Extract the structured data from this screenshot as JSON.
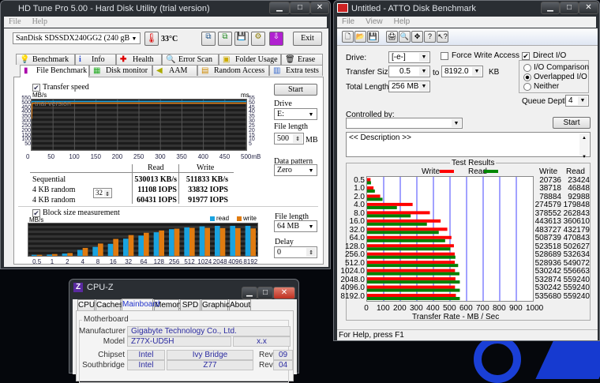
{
  "hdtune": {
    "title": "HD Tune Pro 5.00 - Hard Disk Utility (trial version)",
    "menu": [
      "File",
      "Help"
    ],
    "drive_select": "SanDisk SDSSDX240GG2     (240 gB)",
    "temperature": "33°C",
    "exit_label": "Exit",
    "tabs_row1": [
      "Benchmark",
      "Info",
      "Health",
      "Error Scan",
      "Folder Usage",
      "Erase"
    ],
    "tabs_row2": [
      "File Benchmark",
      "Disk monitor",
      "AAM",
      "Random Access",
      "Extra tests"
    ],
    "active_tab": "File Benchmark",
    "transfer_speed_label": "Transfer speed",
    "transfer_speed_checked": true,
    "watermark": "trial version",
    "start_label": "Start",
    "drive_label": "Drive",
    "drive_value": "E:",
    "file_length_label": "File length",
    "file_length_value": "500",
    "file_length_unit": "MB",
    "data_pattern_label": "Data pattern",
    "data_pattern_value": "Zero",
    "results": {
      "headers": [
        "Read",
        "Write"
      ],
      "rows": [
        {
          "label": "Sequential",
          "read": "530013 KB/s",
          "write": "511833 KB/s"
        },
        {
          "label": "4 KB random",
          "read": "11108 IOPS",
          "write": "33832 IOPS"
        },
        {
          "label": "4 KB random",
          "read": "60431 IOPS",
          "write": "91977 IOPS"
        }
      ],
      "queue_depth": "32"
    },
    "block_size_label": "Block size measurement",
    "block_size_checked": true,
    "block_file_length_label": "File length",
    "block_file_length_value": "64 MB",
    "delay_label": "Delay",
    "delay_value": "0"
  },
  "atto": {
    "title": "Untitled - ATTO Disk Benchmark",
    "menu": [
      "File",
      "View",
      "Help"
    ],
    "drive_label": "Drive:",
    "drive_value": "[-e-]",
    "transfer_size_label": "Transfer Size:",
    "transfer_from": "0.5",
    "to_label": "to",
    "transfer_to": "8192.0",
    "kb_label": "KB",
    "total_length_label": "Total Length:",
    "total_length_value": "256 MB",
    "force_write_label": "Force Write Access",
    "force_write_checked": false,
    "direct_io_label": "Direct I/O",
    "direct_io_checked": true,
    "io_options": [
      "I/O Comparison",
      "Overlapped I/O",
      "Neither"
    ],
    "io_selected": "Overlapped I/O",
    "queue_depth_label": "Queue Depth:",
    "queue_depth_value": "4",
    "controlled_by_label": "Controlled by:",
    "controlled_by_value": "",
    "start_label": "Start",
    "description": "<< Description >>",
    "test_results_label": "Test Results",
    "status": "For Help, press F1",
    "colors": {
      "write": "#ff0000",
      "read": "#008000",
      "grid": "#4444ff"
    }
  },
  "cpuz": {
    "title": "CPU-Z",
    "tabs": [
      "CPU",
      "Caches",
      "Mainboard",
      "Memory",
      "SPD",
      "Graphics",
      "About"
    ],
    "active_tab": "Mainboard",
    "group": "Motherboard",
    "manufacturer_label": "Manufacturer",
    "manufacturer": "Gigabyte Technology Co., Ltd.",
    "model_label": "Model",
    "model": "Z77X-UD5H",
    "model_rev": "x.x",
    "chipset_label": "Chipset",
    "chipset_vendor": "Intel",
    "chipset_name": "Ivy Bridge",
    "chipset_rev_label": "Rev.",
    "chipset_rev": "09",
    "southbridge_label": "Southbridge",
    "sb_vendor": "Intel",
    "sb_name": "Z77",
    "sb_rev_label": "Rev.",
    "sb_rev": "04"
  },
  "chart_data": [
    {
      "type": "line",
      "name": "hdtune-transfer-speed",
      "ylabel": "MB/s",
      "y2label": "ms",
      "xlabel": "mB",
      "x_ticks": [
        "0",
        "50",
        "100",
        "150",
        "200",
        "250",
        "300",
        "350",
        "400",
        "450",
        "500mB"
      ],
      "y_ticks": [
        "50",
        "100",
        "150",
        "200",
        "250",
        "300",
        "350",
        "400",
        "450",
        "500",
        "550"
      ],
      "y2_ticks": [
        "5",
        "10",
        "15",
        "20",
        "25",
        "30",
        "35",
        "40",
        "45",
        "50",
        "55"
      ],
      "xlim": [
        0,
        500
      ],
      "ylim": [
        0,
        550
      ],
      "series": [
        {
          "values_x": [
            0,
            2,
            500
          ],
          "values_y": [
            520,
            530,
            530
          ],
          "color": "#1aa3e0"
        },
        {
          "values_x": [
            0,
            1,
            2,
            500
          ],
          "values_y": [
            340,
            500,
            510,
            510
          ],
          "color": "#e07b10"
        }
      ]
    },
    {
      "type": "bar",
      "name": "hdtune-block-size",
      "ylabel": "MB/s",
      "ylim": [
        0,
        600
      ],
      "categories": [
        "0.5",
        "1",
        "2",
        "4",
        "8",
        "16",
        "32",
        "64",
        "128",
        "256",
        "512",
        "1024",
        "2048",
        "4096",
        "8192"
      ],
      "series": [
        {
          "name": "read",
          "color": "#1aa3e0",
          "values": [
            20,
            25,
            45,
            115,
            175,
            235,
            335,
            395,
            460,
            520,
            555,
            575,
            585,
            585,
            585
          ]
        },
        {
          "name": "write",
          "color": "#e07b10",
          "values": [
            20,
            35,
            55,
            155,
            240,
            330,
            405,
            450,
            495,
            530,
            545,
            545,
            540,
            540,
            535
          ]
        }
      ]
    },
    {
      "type": "bar",
      "name": "atto-test-results",
      "orientation": "horizontal",
      "xlabel": "Transfer Rate - MB / Sec",
      "xlim": [
        0,
        1000
      ],
      "x_ticks": [
        "0",
        "100",
        "200",
        "300",
        "400",
        "500",
        "600",
        "700",
        "800",
        "900",
        "1000"
      ],
      "table_headers": [
        "Write",
        "Read"
      ],
      "categories": [
        "0.5",
        "1.0",
        "2.0",
        "4.0",
        "8.0",
        "16.0",
        "32.0",
        "64.0",
        "128.0",
        "256.0",
        "512.0",
        "1024.0",
        "2048.0",
        "4096.0",
        "8192.0"
      ],
      "series": [
        {
          "name": "Write",
          "values": [
            20736,
            38718,
            78884,
            274579,
            378552,
            443613,
            483727,
            508739,
            523518,
            528689,
            528936,
            530242,
            532874,
            530242,
            535680
          ]
        },
        {
          "name": "Read",
          "values": [
            23424,
            46848,
            92988,
            179848,
            262843,
            360610,
            432179,
            470843,
            502627,
            532634,
            549072,
            556663,
            559240,
            559240,
            559240
          ]
        }
      ]
    }
  ]
}
